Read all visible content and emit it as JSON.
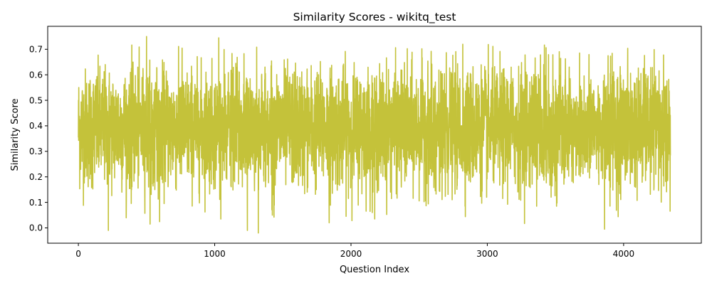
{
  "chart_data": {
    "type": "line",
    "title": "Similarity Scores - wikitq_test",
    "xlabel": "Question Index",
    "ylabel": "Similarity Score",
    "xlim": [
      -225,
      4570
    ],
    "ylim": [
      -0.06,
      0.79
    ],
    "xticks": [
      0,
      1000,
      2000,
      3000,
      4000
    ],
    "xtick_labels": [
      "0",
      "1000",
      "2000",
      "3000",
      "4000"
    ],
    "yticks": [
      0.0,
      0.1,
      0.2,
      0.3,
      0.4,
      0.5,
      0.6,
      0.7
    ],
    "ytick_labels": [
      "0.0",
      "0.1",
      "0.2",
      "0.3",
      "0.4",
      "0.5",
      "0.6",
      "0.7"
    ],
    "grid": false,
    "series": [
      {
        "color": "#c4c23a",
        "n_points": 4344,
        "x_start": 0,
        "x_end": 4343,
        "values_summary": {
          "typical_range": [
            0.15,
            0.65
          ],
          "center": 0.39,
          "min": -0.02,
          "max": 0.75
        },
        "notable_points": [
          {
            "x": 220,
            "y": -0.01
          },
          {
            "x": 500,
            "y": 0.75
          },
          {
            "x": 1030,
            "y": 0.745
          },
          {
            "x": 1240,
            "y": -0.01
          },
          {
            "x": 1320,
            "y": -0.02
          },
          {
            "x": 1840,
            "y": 0.02
          },
          {
            "x": 2820,
            "y": 0.72
          },
          {
            "x": 3860,
            "y": -0.005
          }
        ]
      }
    ]
  }
}
